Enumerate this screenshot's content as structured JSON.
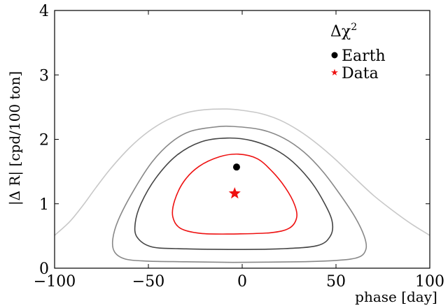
{
  "chart_data": {
    "type": "line",
    "xlabel": "phase [day]",
    "ylabel": "|Δ R| [cpd/100 ton]",
    "xlim": [
      -100,
      100
    ],
    "ylim": [
      0,
      4
    ],
    "xticks": [
      -100,
      -50,
      0,
      50,
      100
    ],
    "xtick_labels": [
      "−100",
      "−50",
      "0",
      "50",
      "100"
    ],
    "yticks": [
      0,
      1,
      2,
      3,
      4
    ],
    "ytick_labels": [
      "0",
      "1",
      "2",
      "3",
      "4"
    ],
    "grid": false,
    "legend": {
      "placement": "top-right",
      "title_base": "Δχ",
      "title_sup": "2",
      "entries": [
        {
          "label": "Earth",
          "marker": "circle",
          "color": "#000000"
        },
        {
          "label": "Data",
          "marker": "star",
          "color": "#ee1111"
        }
      ]
    },
    "contours": [
      {
        "color": "#c8c8c8",
        "points": [
          [
            -100,
            0.51
          ],
          [
            -92,
            0.72
          ],
          [
            -85,
            0.97
          ],
          [
            -78,
            1.25
          ],
          [
            -70,
            1.55
          ],
          [
            -60,
            1.87
          ],
          [
            -50,
            2.12
          ],
          [
            -40,
            2.3
          ],
          [
            -30,
            2.41
          ],
          [
            -20,
            2.46
          ],
          [
            -8,
            2.47
          ],
          [
            0,
            2.45
          ],
          [
            10,
            2.4
          ],
          [
            20,
            2.3
          ],
          [
            30,
            2.14
          ],
          [
            40,
            1.93
          ],
          [
            50,
            1.68
          ],
          [
            60,
            1.4
          ],
          [
            70,
            1.13
          ],
          [
            80,
            0.9
          ],
          [
            90,
            0.69
          ],
          [
            100,
            0.51
          ]
        ]
      },
      {
        "color": "#888888",
        "points": [
          [
            -5,
            0.09
          ],
          [
            -30,
            0.1
          ],
          [
            -50,
            0.11
          ],
          [
            -62,
            0.14
          ],
          [
            -68,
            0.25
          ],
          [
            -69,
            0.45
          ],
          [
            -66,
            0.75
          ],
          [
            -58,
            1.2
          ],
          [
            -48,
            1.65
          ],
          [
            -38,
            1.95
          ],
          [
            -28,
            2.12
          ],
          [
            -15,
            2.19
          ],
          [
            -5,
            2.2
          ],
          [
            10,
            2.15
          ],
          [
            22,
            2.02
          ],
          [
            33,
            1.8
          ],
          [
            43,
            1.5
          ],
          [
            52,
            1.15
          ],
          [
            60,
            0.8
          ],
          [
            65,
            0.5
          ],
          [
            66,
            0.3
          ],
          [
            62,
            0.17
          ],
          [
            50,
            0.12
          ],
          [
            30,
            0.1
          ],
          [
            -5,
            0.09
          ]
        ]
      },
      {
        "color": "#444444",
        "points": [
          [
            -5,
            0.29
          ],
          [
            -30,
            0.3
          ],
          [
            -48,
            0.33
          ],
          [
            -56,
            0.48
          ],
          [
            -57,
            0.7
          ],
          [
            -54,
            1.0
          ],
          [
            -46,
            1.4
          ],
          [
            -35,
            1.75
          ],
          [
            -22,
            1.96
          ],
          [
            -8,
            2.02
          ],
          [
            5,
            1.98
          ],
          [
            17,
            1.85
          ],
          [
            27,
            1.65
          ],
          [
            37,
            1.33
          ],
          [
            44,
            1.0
          ],
          [
            48,
            0.72
          ],
          [
            47,
            0.5
          ],
          [
            40,
            0.35
          ],
          [
            20,
            0.3
          ],
          [
            -5,
            0.29
          ]
        ]
      },
      {
        "color": "#ee1111",
        "points": [
          [
            -5,
            0.53
          ],
          [
            -22,
            0.54
          ],
          [
            -33,
            0.62
          ],
          [
            -37,
            0.8
          ],
          [
            -36,
            1.05
          ],
          [
            -31,
            1.35
          ],
          [
            -23,
            1.58
          ],
          [
            -12,
            1.73
          ],
          [
            -2,
            1.77
          ],
          [
            8,
            1.7
          ],
          [
            16,
            1.5
          ],
          [
            23,
            1.25
          ],
          [
            28,
            0.98
          ],
          [
            29,
            0.78
          ],
          [
            25,
            0.62
          ],
          [
            15,
            0.55
          ],
          [
            -5,
            0.53
          ]
        ]
      }
    ],
    "points": [
      {
        "name": "Earth",
        "x": -3,
        "y": 1.57,
        "marker": "circle",
        "color": "#000000"
      },
      {
        "name": "Data",
        "x": -4,
        "y": 1.16,
        "marker": "star",
        "color": "#ee1111"
      }
    ]
  }
}
